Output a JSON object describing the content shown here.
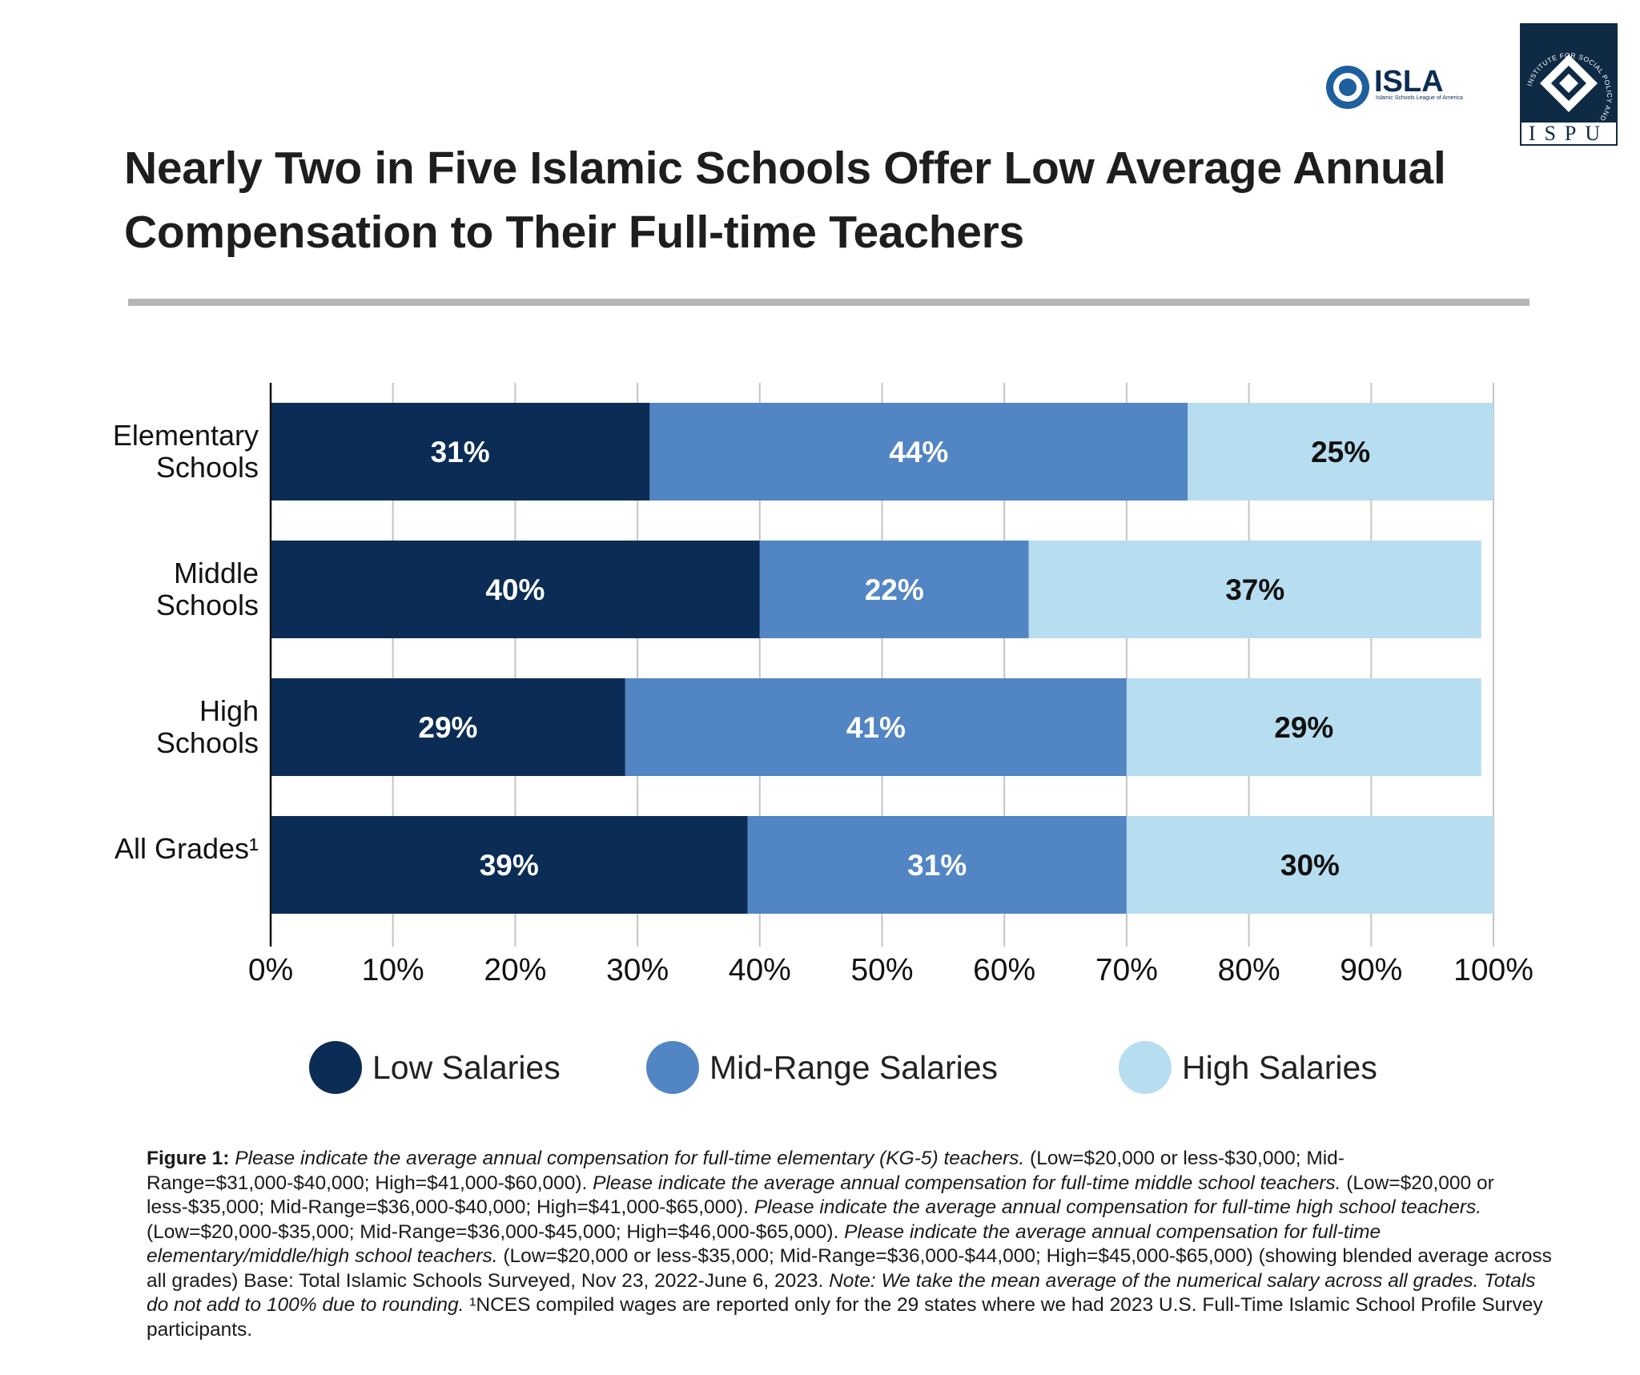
{
  "chart_data": {
    "type": "stacked-bar-horizontal",
    "title": "Nearly Two in Five Islamic Schools Offer Low Average Annual Compensation to Their Full-time Teachers",
    "categories": [
      "Elementary Schools",
      "Middle Schools",
      "High Schools",
      "All Grades¹"
    ],
    "series": [
      {
        "name": "Low Salaries",
        "color": "#0b2d55",
        "label_color": "#ffffff",
        "values": [
          31,
          40,
          29,
          39
        ],
        "value_labels": [
          "31%",
          "40%",
          "29%",
          "39%"
        ]
      },
      {
        "name": "Mid-Range Salaries",
        "color": "#5285c4",
        "label_color": "#ffffff",
        "values": [
          44,
          22,
          41,
          31
        ],
        "value_labels": [
          "44%",
          "22%",
          "41%",
          "31%"
        ]
      },
      {
        "name": "High Salaries",
        "color": "#b7ddf0",
        "label_color": "#111111",
        "values": [
          25,
          37,
          29,
          30
        ],
        "value_labels": [
          "25%",
          "37%",
          "29%",
          "30%"
        ]
      }
    ],
    "xlim": [
      0,
      100
    ],
    "xticks": [
      {
        "value": 0,
        "label": "0%"
      },
      {
        "value": 10,
        "label": "10%"
      },
      {
        "value": 20,
        "label": "20%"
      },
      {
        "value": 30,
        "label": "30%"
      },
      {
        "value": 40,
        "label": "40%"
      },
      {
        "value": 50,
        "label": "50%"
      },
      {
        "value": 60,
        "label": "60%"
      },
      {
        "value": 70,
        "label": "70%"
      },
      {
        "value": 80,
        "label": "80%"
      },
      {
        "value": 90,
        "label": "90%"
      },
      {
        "value": 100,
        "label": "100%"
      }
    ],
    "grid": true,
    "legend": "bottom"
  },
  "logos": {
    "isla": {
      "name": "ISLA",
      "subtitle": "Islamic Schools League of America"
    },
    "ispu": {
      "name": "ISPU",
      "ring": "INSTITUTE FOR SOCIAL POLICY AND UNDERSTANDING"
    }
  },
  "note": [
    {
      "text": "Figure 1:",
      "style": "bold"
    },
    {
      "text": " Please indicate the average annual compensation for full-time elementary (KG-5) teachers.",
      "style": "italic"
    },
    {
      "text": " (Low=$20,000 or less-$30,000; Mid-Range=$31,000-$40,000; High=$41,000-$60,000).",
      "style": "normal"
    },
    {
      "text": " Please indicate the average annual compensation for full-time middle school teachers.",
      "style": "italic"
    },
    {
      "text": " (Low=$20,000 or less-$35,000; Mid-Range=$36,000-$40,000; High=$41,000-$65,000).",
      "style": "normal"
    },
    {
      "text": " Please indicate the average annual compensation for full-time high school teachers.",
      "style": "italic"
    },
    {
      "text": " (Low=$20,000-$35,000; Mid-Range=$36,000-$45,000; High=$46,000-$65,000).",
      "style": "normal"
    },
    {
      "text": " Please indicate the average annual compensation for full-time elementary/middle/high school teachers.",
      "style": "italic"
    },
    {
      "text": " (Low=$20,000 or less-$35,000; Mid-Range=$36,000-$44,000; High=$45,000-$65,000) (showing blended average across all grades) Base: Total Islamic Schools Surveyed, Nov 23, 2022-June 6, 2023.",
      "style": "normal"
    },
    {
      "text": " Note: We take the mean average of the numerical salary across all grades. Totals do not add to 100% due to rounding.",
      "style": "italic"
    },
    {
      "text": " ¹NCES compiled wages are reported only for the 29 states where we had 2023 U.S. Full-Time Islamic School Profile Survey participants.",
      "style": "normal"
    }
  ]
}
